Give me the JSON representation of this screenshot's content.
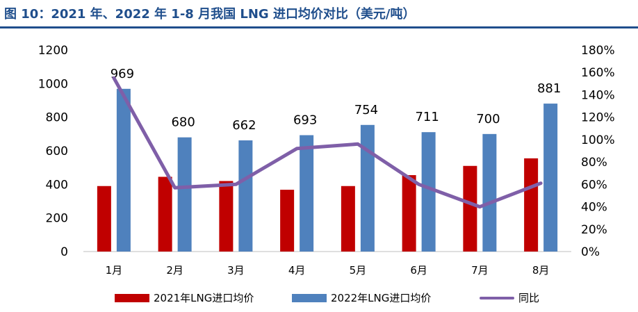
{
  "title": "图 10：2021 年、2022 年 1-8 月我国 LNG 进口均价对比（美元/吨）",
  "chart_data": {
    "type": "bar",
    "categories": [
      "1月",
      "2月",
      "3月",
      "4月",
      "5月",
      "6月",
      "7月",
      "8月"
    ],
    "series": [
      {
        "name": "2021年LNG进口均价",
        "kind": "bar",
        "axis": "left",
        "values": [
          390,
          445,
          420,
          368,
          390,
          455,
          510,
          555
        ],
        "color": "#c00000"
      },
      {
        "name": "2022年LNG进口均价",
        "kind": "bar",
        "axis": "left",
        "values": [
          969,
          680,
          662,
          693,
          754,
          711,
          700,
          881
        ],
        "color": "#4f81bd",
        "labels": [
          "969",
          "680",
          "662",
          "693",
          "754",
          "711",
          "700",
          "881"
        ]
      },
      {
        "name": "同比",
        "kind": "line",
        "axis": "right",
        "values": [
          155,
          57,
          60,
          92,
          96,
          60,
          40,
          61
        ],
        "color": "#7f5fa8"
      }
    ],
    "y_left": {
      "min": 0,
      "max": 1200,
      "ticks": [
        "0",
        "200",
        "400",
        "600",
        "800",
        "1000",
        "1200"
      ]
    },
    "y_right": {
      "min": 0,
      "max": 180,
      "ticks": [
        "0%",
        "20%",
        "40%",
        "60%",
        "80%",
        "100%",
        "120%",
        "140%",
        "160%",
        "180%"
      ]
    },
    "legend_position": "bottom"
  }
}
